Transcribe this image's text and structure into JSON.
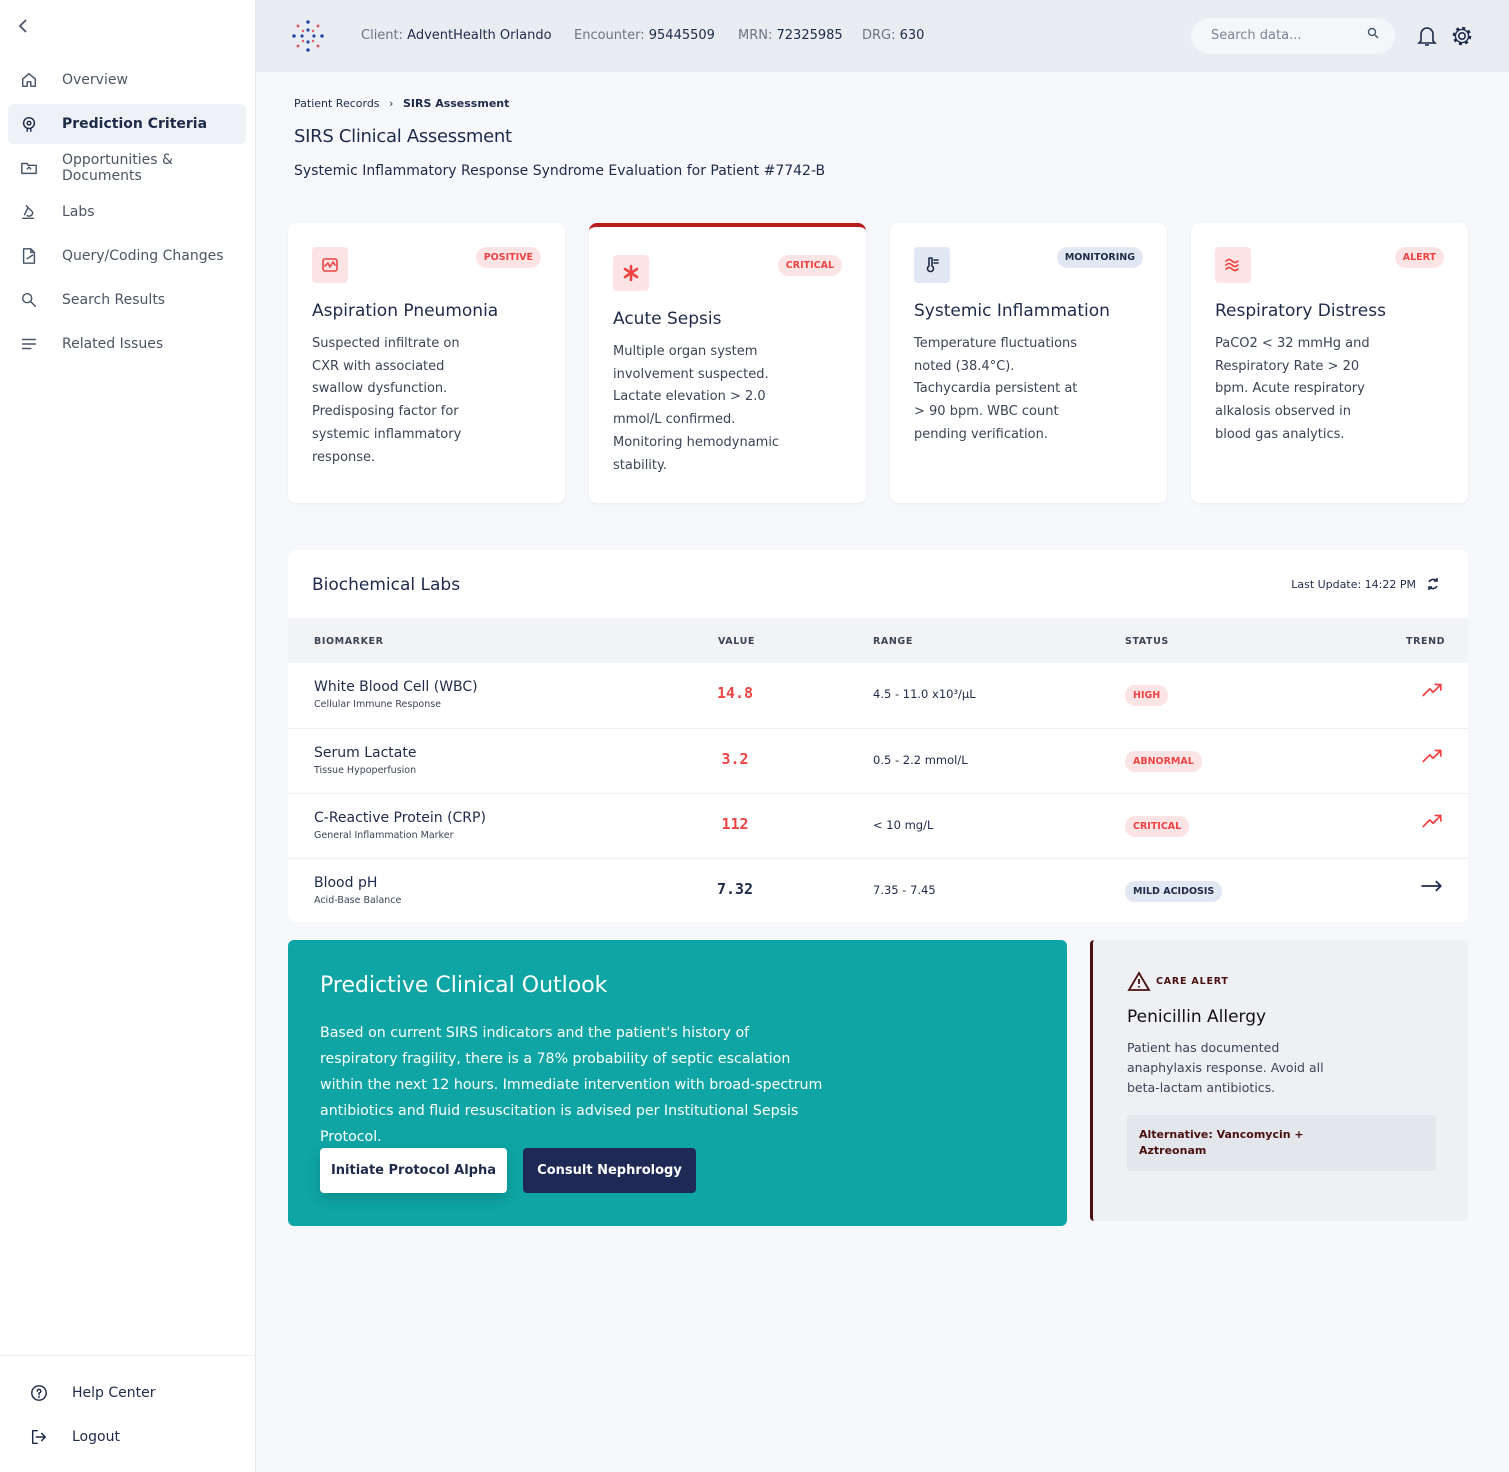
{
  "sidebar": {
    "nav": [
      {
        "label": "Overview",
        "icon": "home",
        "active": false
      },
      {
        "label": "Prediction Criteria",
        "icon": "target",
        "active": true
      },
      {
        "label": "Opportunities & Documents",
        "icon": "folder",
        "active": false
      },
      {
        "label": "Labs",
        "icon": "flask",
        "active": false
      },
      {
        "label": "Query/Coding Changes",
        "icon": "doc",
        "active": false
      },
      {
        "label": "Search Results",
        "icon": "search",
        "active": false
      },
      {
        "label": "Related Issues",
        "icon": "list",
        "active": false
      }
    ],
    "footer": [
      {
        "label": "Help Center",
        "icon": "help"
      },
      {
        "label": "Logout",
        "icon": "logout"
      }
    ]
  },
  "header": {
    "fields": [
      {
        "label": "Client:",
        "value": "AdventHealth Orlando"
      },
      {
        "label": "Encounter:",
        "value": "95445509"
      },
      {
        "label": "MRN:",
        "value": "72325985"
      },
      {
        "label": "DRG:",
        "value": "630"
      }
    ],
    "search_placeholder": "Search data..."
  },
  "breadcrumb": [
    "Patient Records",
    "SIRS Assessment"
  ],
  "title": "SIRS Clinical Assessment",
  "subtitle": "Systemic Inflammatory Response Syndrome Evaluation for Patient #7742-B",
  "cards": [
    {
      "badge": "POSITIVE",
      "tone": "red",
      "highlight": false,
      "icon": "lungs",
      "title": "Aspiration Pneumonia",
      "text": "Suspected infiltrate on CXR with associated swallow dysfunction. Predisposing factor for systemic inflammatory response."
    },
    {
      "badge": "CRITICAL",
      "tone": "red",
      "highlight": true,
      "icon": "asterisk",
      "title": "Acute Sepsis",
      "text": "Multiple organ system involvement suspected. Lactate elevation > 2.0 mmol/L confirmed. Monitoring hemodynamic stability."
    },
    {
      "badge": "MONITORING",
      "tone": "blue",
      "highlight": false,
      "icon": "thermo",
      "title": "Systemic Inflammation",
      "text": "Temperature fluctuations noted (38.4°C). Tachycardia persistent at > 90 bpm. WBC count pending verification."
    },
    {
      "badge": "ALERT",
      "tone": "red",
      "highlight": false,
      "icon": "waves",
      "title": "Respiratory Distress",
      "text": "PaCO2 < 32 mmHg and Respiratory Rate > 20 bpm. Acute respiratory alkalosis observed in blood gas analytics."
    }
  ],
  "labs": {
    "title": "Biochemical Labs",
    "last_update": "Last Update: 14:22 PM",
    "columns": [
      "BIOMARKER",
      "VALUE",
      "RANGE",
      "STATUS",
      "TREND"
    ],
    "rows": [
      {
        "name": "White Blood Cell (WBC)",
        "sub": "Cellular Immune Response",
        "value": "14.8",
        "range": "4.5 - 11.0 x10³/µL",
        "status": "HIGH",
        "tone": "red",
        "trend": "up"
      },
      {
        "name": "Serum Lactate",
        "sub": "Tissue Hypoperfusion",
        "value": "3.2",
        "range": "0.5 - 2.2 mmol/L",
        "status": "ABNORMAL",
        "tone": "red",
        "trend": "up"
      },
      {
        "name": "C-Reactive Protein (CRP)",
        "sub": "General Inflammation Marker",
        "value": "112",
        "range": "< 10 mg/L",
        "status": "CRITICAL",
        "tone": "red",
        "trend": "up"
      },
      {
        "name": "Blood pH",
        "sub": "Acid-Base Balance",
        "value": "7.32",
        "range": "7.35 - 7.45",
        "status": "MILD ACIDOSIS",
        "tone": "blue",
        "trend": "flat"
      }
    ]
  },
  "outlook": {
    "title": "Predictive Clinical Outlook",
    "text": "Based on current SIRS indicators and the patient's history of respiratory fragility, there is a 78% probability of septic escalation within the next 12 hours. Immediate intervention with broad-spectrum antibiotics and fluid resuscitation is advised per Institutional Sepsis Protocol.",
    "buttons": [
      "Initiate Protocol Alpha",
      "Consult Nephrology"
    ]
  },
  "alert": {
    "label": "CARE ALERT",
    "title": "Penicillin Allergy",
    "text": "Patient has documented anaphylaxis response. Avoid all beta-lactam antibiotics.",
    "alternative": "Alternative: Vancomycin + Aztreonam"
  }
}
